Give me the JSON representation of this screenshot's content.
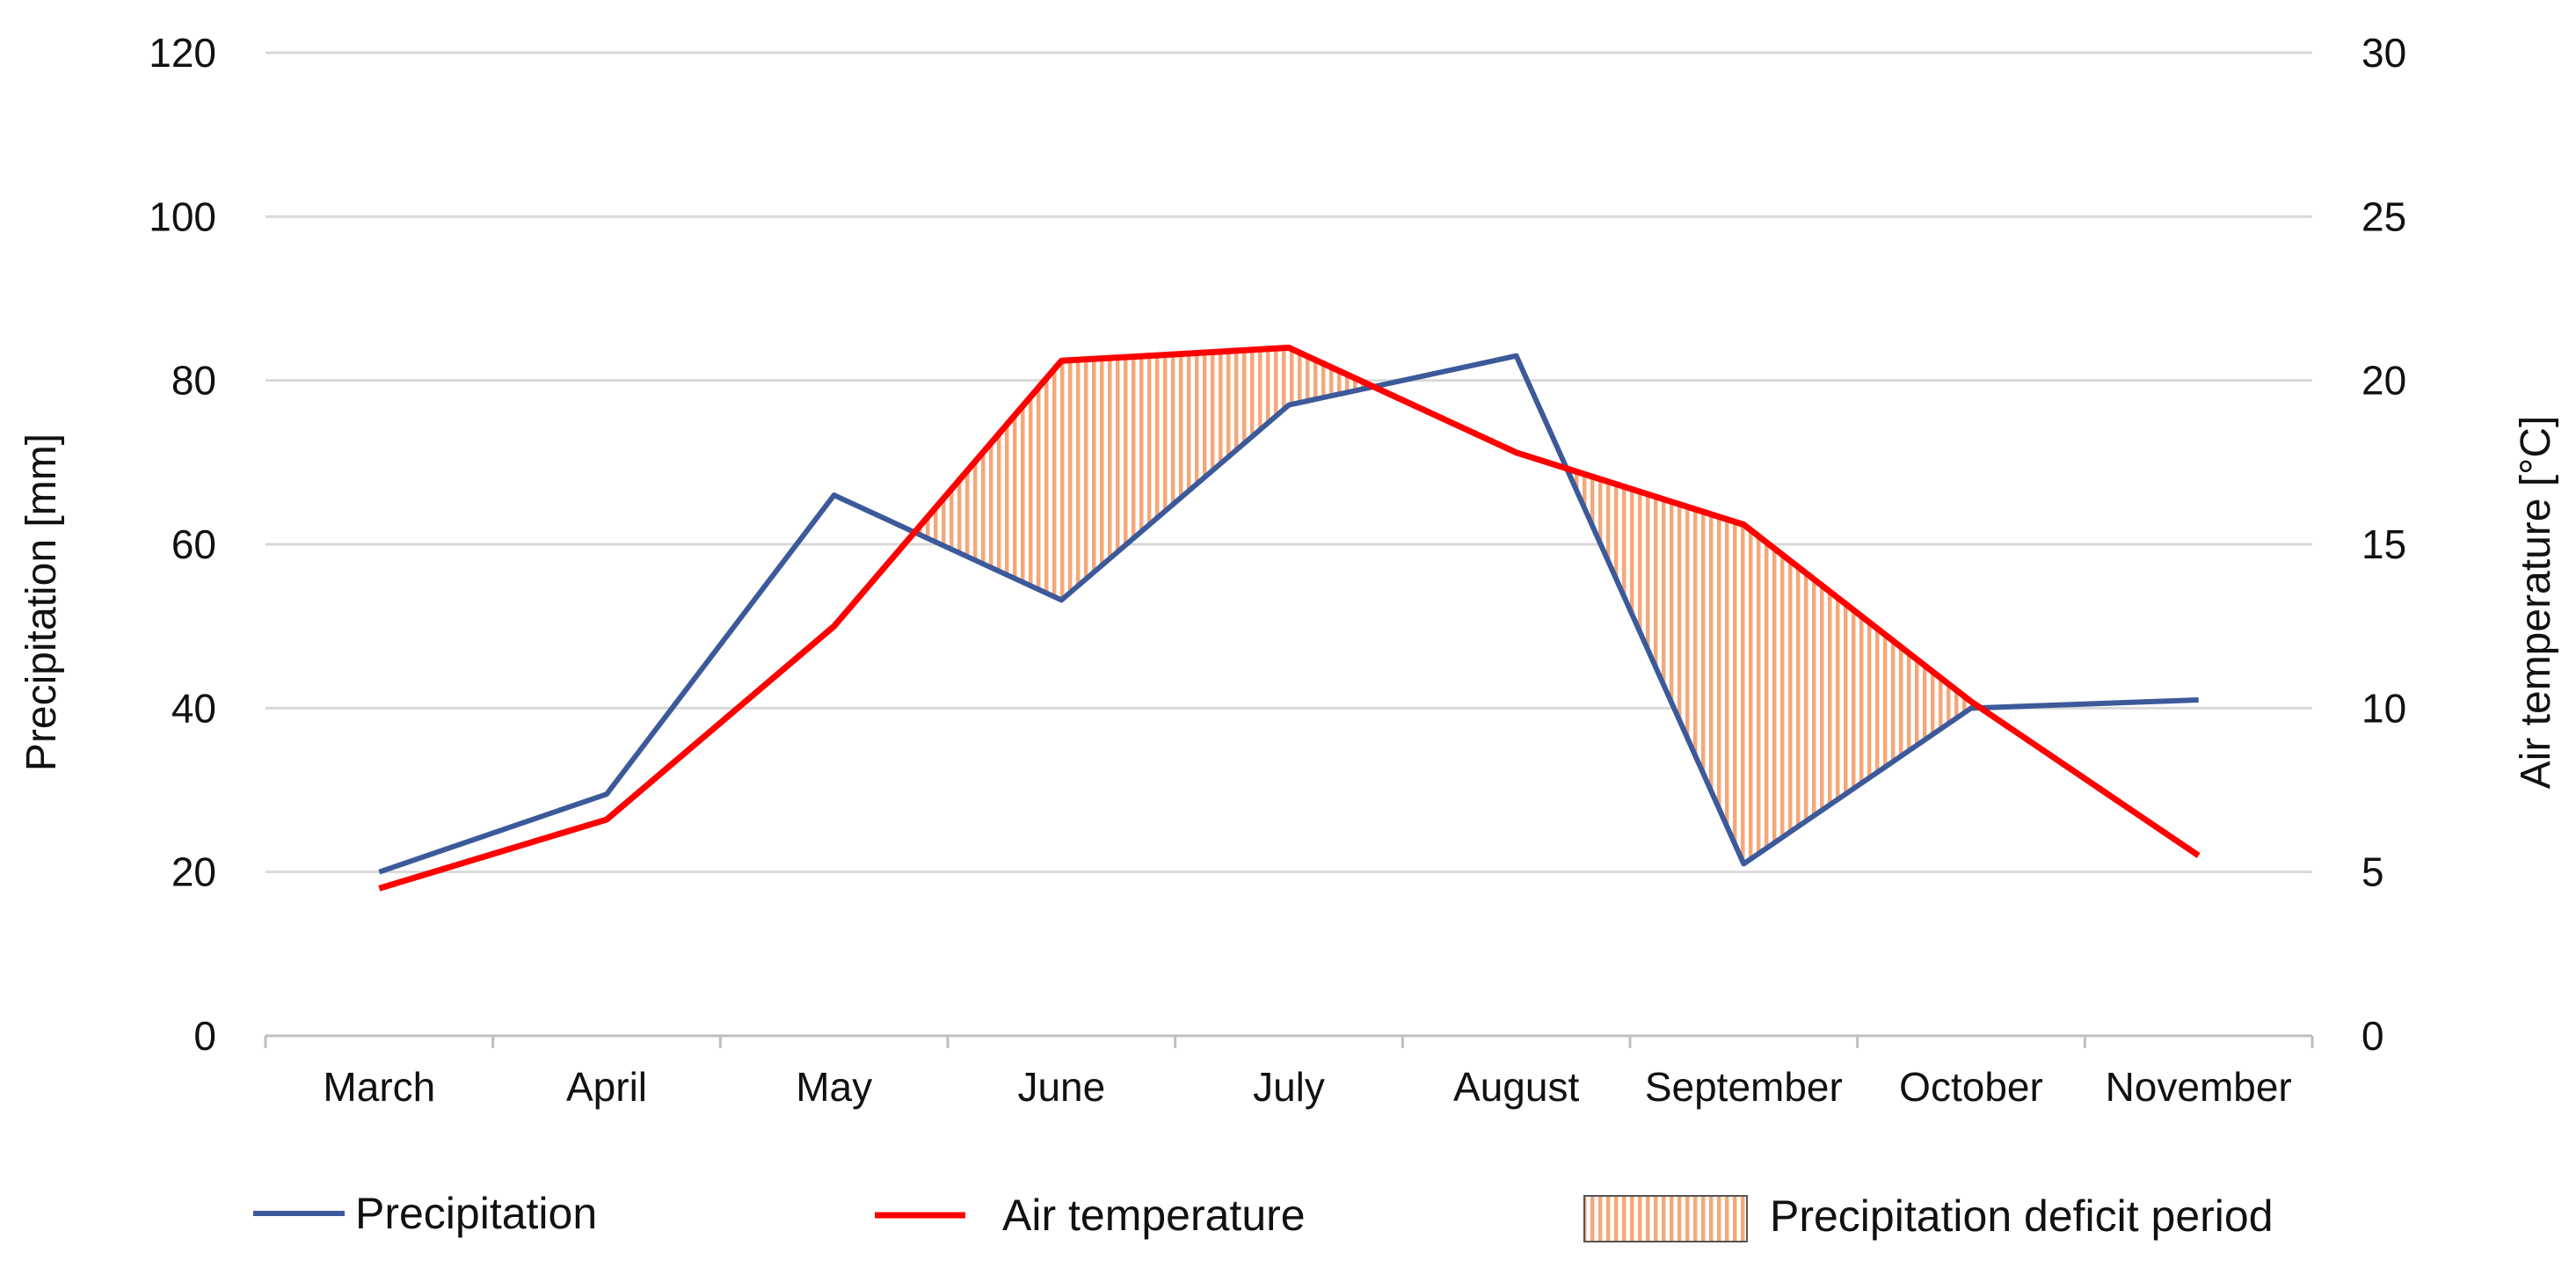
{
  "chart_data": {
    "type": "line",
    "title": "",
    "categories": [
      "March",
      "April",
      "May",
      "June",
      "July",
      "August",
      "September",
      "October",
      "November"
    ],
    "series": [
      {
        "name": "Precipitation",
        "axis": "left",
        "color": "#3c5a9a",
        "values": [
          20,
          29.5,
          66,
          53.2,
          77,
          83,
          21,
          40,
          41
        ]
      },
      {
        "name": "Air temperature",
        "axis": "right",
        "color": "#ff0000",
        "values": [
          4.5,
          6.6,
          12.5,
          20.6,
          21,
          17.8,
          15.6,
          10.2,
          5.5
        ]
      }
    ],
    "deficit_label": "Precipitation deficit period",
    "deficit_color": "#f4a87a",
    "ylabel_left": "Precipitation [mm]",
    "ylabel_right": "Air temperature [°C]",
    "ylim_left": [
      0,
      120
    ],
    "ylim_right": [
      0,
      30
    ],
    "yticks_left": [
      "0",
      "20",
      "40",
      "60",
      "80",
      "100",
      "120"
    ],
    "yticks_right": [
      "0",
      "5",
      "10",
      "15",
      "20",
      "25",
      "30"
    ],
    "grid": true,
    "legend_position": "bottom"
  }
}
